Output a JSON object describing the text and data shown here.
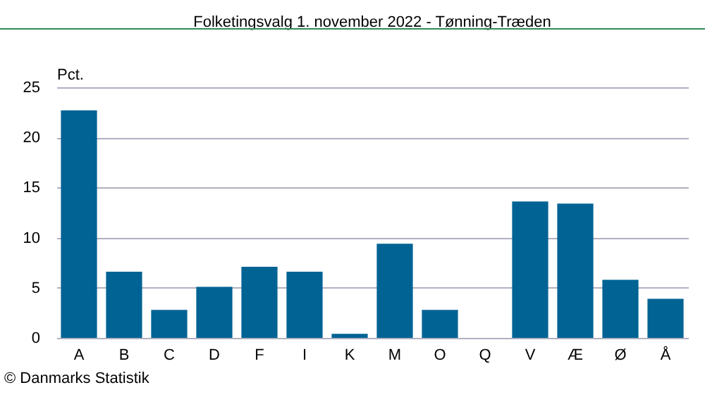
{
  "chart_data": {
    "type": "bar",
    "title": "Folketingsvalg 1. november 2022 - Tønning-Træden",
    "ylabel": "Pct.",
    "categories": [
      "A",
      "B",
      "C",
      "D",
      "F",
      "I",
      "K",
      "M",
      "O",
      "Q",
      "V",
      "Æ",
      "Ø",
      "Å"
    ],
    "values": [
      22.7,
      6.6,
      2.8,
      5.1,
      7.1,
      6.6,
      0.4,
      9.4,
      2.8,
      0,
      13.6,
      13.4,
      5.8,
      3.9
    ],
    "color": "#006394",
    "ylim": [
      0,
      25
    ],
    "yticks": [
      0,
      5,
      10,
      15,
      20,
      25
    ],
    "grid": "y",
    "annotations": [
      "© Danmarks Statistik"
    ]
  }
}
